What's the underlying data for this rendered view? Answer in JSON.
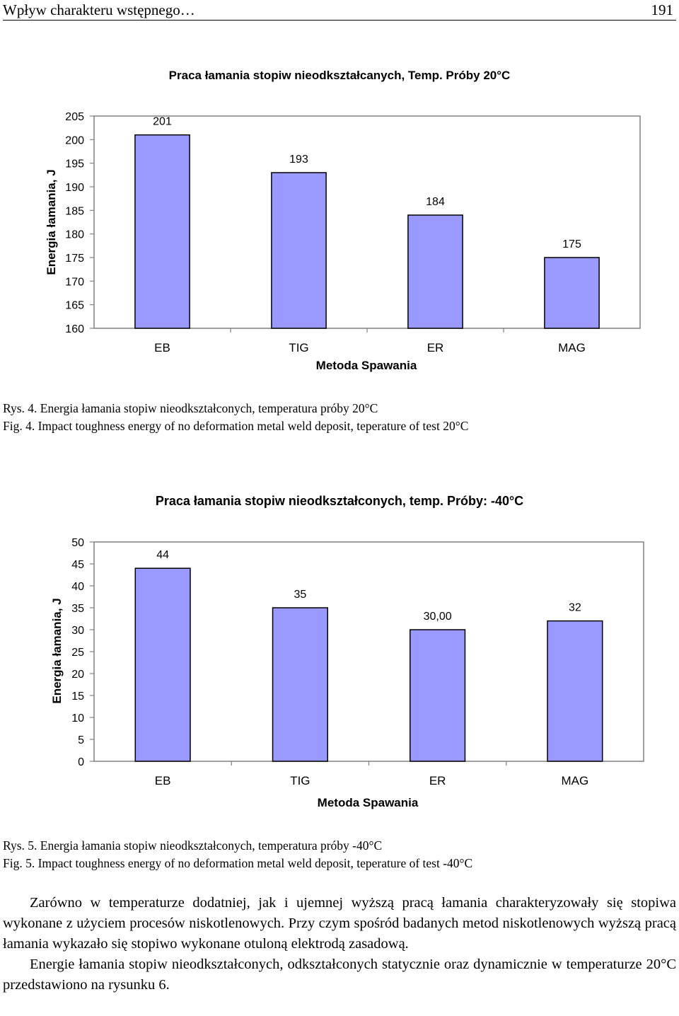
{
  "header": {
    "title": "Wpływ charakteru wstępnego…",
    "page_number": "191"
  },
  "charts": [
    {
      "id": "chart1",
      "type": "bar",
      "title": "Praca łamania stopiw nieodkształcanych, Temp. Próby 20°C",
      "xlabel": "Metoda Spawania",
      "ylabel": "Energia łamania, J",
      "categories": [
        "EB",
        "TIG",
        "ER",
        "MAG"
      ],
      "values": [
        201,
        193,
        184,
        175
      ],
      "value_labels": [
        "201",
        "193",
        "184",
        "175"
      ],
      "ylim": [
        160,
        205
      ],
      "yticks": [
        "160",
        "165",
        "170",
        "175",
        "180",
        "185",
        "190",
        "195",
        "200",
        "205"
      ],
      "bar_color": "#9999ff",
      "grid": false
    },
    {
      "id": "chart2",
      "type": "bar",
      "title": "Praca łamania stopiw nieodkształconych, temp. Próby: -40°C",
      "xlabel": "Metoda Spawania",
      "ylabel": "Energia łamania, J",
      "categories": [
        "EB",
        "TIG",
        "ER",
        "MAG"
      ],
      "values": [
        44,
        35,
        30,
        32
      ],
      "value_labels": [
        "44",
        "35",
        "30,00",
        "32"
      ],
      "ylim": [
        0,
        50
      ],
      "yticks": [
        "0",
        "5",
        "10",
        "15",
        "20",
        "25",
        "30",
        "35",
        "40",
        "45",
        "50"
      ],
      "bar_color": "#9999ff",
      "grid": false
    }
  ],
  "captions": {
    "rys4": "Rys. 4. Energia łamania stopiw nieodkształconych, temperatura próby 20°C",
    "fig4": "Fig. 4. Impact toughness energy of no deformation metal weld deposit, teperature of test 20°C",
    "rys5": "Rys. 5. Energia łamania stopiw nieodkształconych, temperatura próby -40°C",
    "fig5": "Fig. 5. Impact toughness energy of no deformation metal weld deposit, teperature of test -40°C"
  },
  "body": {
    "paragraph1": "Zarówno w temperaturze dodatniej, jak i ujemnej wyższą pracą łamania charakteryzowały się stopiwa wykonane z użyciem procesów niskotlenowych. Przy czym spośród badanych metod niskotlenowych wyższą pracą łamania wykazało się stopiwo wykonane otuloną elektrodą zasadową.",
    "paragraph2": "Energie łamania stopiw nieodkształconych, odkształconych statycznie oraz dynamicznie w temperaturze 20°C przedstawiono na rysunku 6."
  },
  "chart_data": [
    {
      "type": "bar",
      "title": "Praca łamania stopiw nieodkształcanych, Temp. Próby 20°C",
      "xlabel": "Metoda Spawania",
      "ylabel": "Energia łamania, J",
      "categories": [
        "EB",
        "TIG",
        "ER",
        "MAG"
      ],
      "values": [
        201,
        193,
        184,
        175
      ],
      "ylim": [
        160,
        205
      ]
    },
    {
      "type": "bar",
      "title": "Praca łamania stopiw nieodkształconych, temp. Próby: -40°C",
      "xlabel": "Metoda Spawania",
      "ylabel": "Energia łamania, J",
      "categories": [
        "EB",
        "TIG",
        "ER",
        "MAG"
      ],
      "values": [
        44,
        35,
        30,
        32
      ],
      "ylim": [
        0,
        50
      ]
    }
  ]
}
